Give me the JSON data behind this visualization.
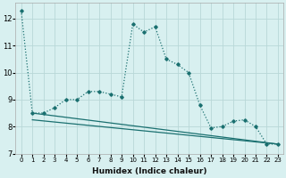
{
  "xlabel": "Humidex (Indice chaleur)",
  "background_color": "#d8f0f0",
  "grid_color": "#b8d8d8",
  "line_color": "#1a7070",
  "xlim": [
    -0.5,
    23.5
  ],
  "ylim": [
    7.0,
    12.6
  ],
  "yticks": [
    7,
    8,
    9,
    10,
    11,
    12
  ],
  "xticks": [
    0,
    1,
    2,
    3,
    4,
    5,
    6,
    7,
    8,
    9,
    10,
    11,
    12,
    13,
    14,
    15,
    16,
    17,
    18,
    19,
    20,
    21,
    22,
    23
  ],
  "line1_x": [
    0,
    1,
    2,
    3,
    4,
    5,
    6,
    7,
    8,
    9,
    10,
    11,
    12,
    13,
    14,
    15,
    16,
    17,
    18,
    19,
    20,
    21,
    22,
    23
  ],
  "line1_y": [
    12.3,
    8.5,
    8.5,
    8.7,
    9.0,
    9.0,
    9.3,
    9.3,
    9.2,
    9.1,
    11.8,
    11.5,
    11.7,
    10.5,
    10.3,
    10.0,
    8.8,
    7.95,
    8.0,
    8.2,
    8.25,
    8.0,
    7.35,
    7.35
  ],
  "line2_x": [
    1,
    23
  ],
  "line2_y": [
    8.25,
    7.35
  ],
  "line3_x": [
    1,
    23
  ],
  "line3_y": [
    8.5,
    7.35
  ]
}
